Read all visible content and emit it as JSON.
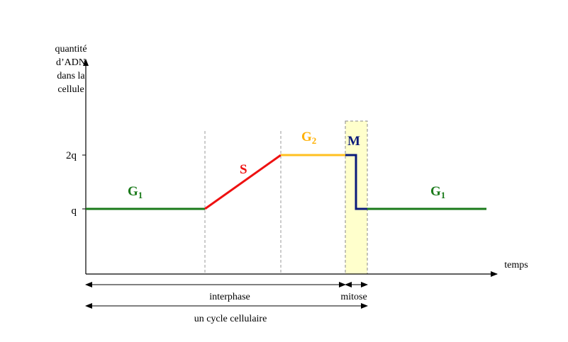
{
  "axis": {
    "y_label": [
      "quantité",
      "d’ADN",
      "dans la",
      "cellule"
    ],
    "x_label": "temps",
    "tick_high": "2q",
    "tick_low": "q"
  },
  "phases": [
    {
      "letter": "G",
      "sub": "1"
    },
    {
      "letter": "S"
    },
    {
      "letter": "G",
      "sub": "2"
    },
    {
      "letter": "M"
    },
    {
      "letter": "G",
      "sub": "1"
    }
  ],
  "spans": {
    "interphase": "interphase",
    "mitose": "mitose",
    "cycle": "un cycle cellulaire"
  }
}
